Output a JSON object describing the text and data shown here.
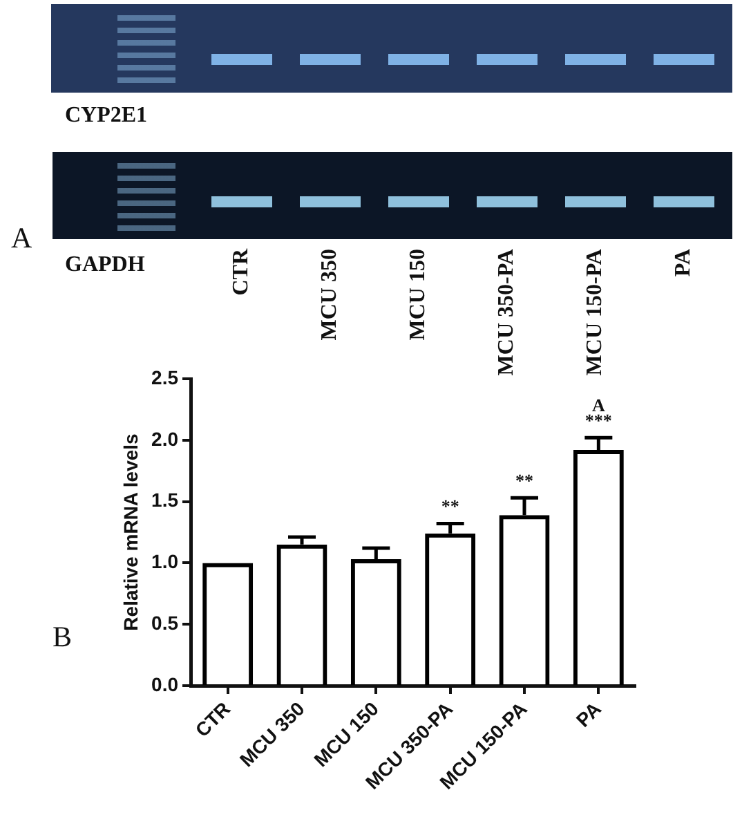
{
  "chart_data": [
    {
      "type": "other",
      "categories": [
        "CTR",
        "MCU 350",
        "MCU 150",
        "MCU 350-PA",
        "MCU 150-PA",
        "PA"
      ],
      "annotations": [
        "CYP2E1",
        "GAPDH",
        "A"
      ]
    },
    {
      "type": "bar",
      "categories": [
        "CTR",
        "MCU 350",
        "MCU 150",
        "MCU 350-PA",
        "MCU 150-PA",
        "PA"
      ],
      "values": [
        1.0,
        1.15,
        1.03,
        1.24,
        1.39,
        1.92
      ],
      "errors": [
        null,
        [
          1.15,
          1.21
        ],
        [
          1.03,
          1.12
        ],
        [
          1.24,
          1.32
        ],
        [
          1.39,
          1.53
        ],
        [
          1.92,
          2.02
        ]
      ],
      "color": "#000000",
      "ylabel": "Relative mRNA levels",
      "ylim": [
        0,
        2.5
      ],
      "yticks": [
        {
          "value": 0,
          "label": "0.0"
        },
        {
          "value": 0.5,
          "label": "0.5"
        },
        {
          "value": 1,
          "label": "1.0"
        },
        {
          "value": 1.5,
          "label": "1.5"
        },
        {
          "value": 2,
          "label": "2.0"
        },
        {
          "value": 2.5,
          "label": "2.5"
        }
      ],
      "annotations": [
        "B",
        {
          "text": "**",
          "x": "MCU 350-PA",
          "y": 1.32
        },
        {
          "text": "**",
          "x": "MCU 150-PA",
          "y": 1.53
        },
        {
          "text": "***",
          "x": "PA",
          "y": 2.02
        },
        {
          "text": "A",
          "x": "PA",
          "y": 2.02
        }
      ]
    }
  ]
}
